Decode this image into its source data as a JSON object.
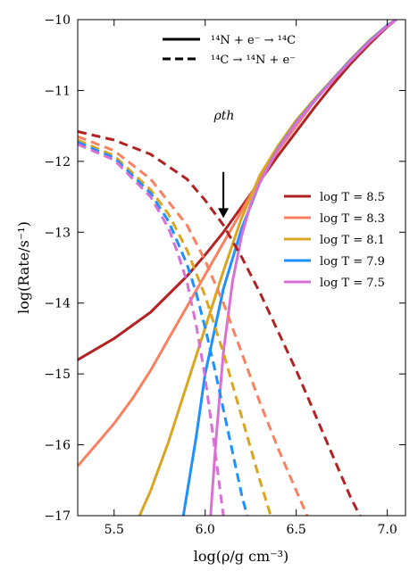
{
  "chart_data": {
    "type": "line",
    "title": "",
    "xlabel": "log(ρ/g cm⁻³)",
    "ylabel": "log(Rate/s⁻¹)",
    "xlim": [
      5.3,
      7.1
    ],
    "ylim": [
      -17,
      -10
    ],
    "xticks": [
      5.5,
      6.0,
      6.5,
      7.0
    ],
    "xtick_labels": [
      "5.5",
      "6.0",
      "6.5",
      "7.0"
    ],
    "yticks": [
      -17,
      -16,
      -15,
      -14,
      -13,
      -12,
      -11,
      -10
    ],
    "ytick_labels": [
      "−17",
      "−16",
      "−15",
      "−14",
      "−13",
      "−12",
      "−11",
      "−10"
    ],
    "grid": false,
    "annotation": {
      "label": "ρth",
      "x": 6.1,
      "y_from": -12.15,
      "y_to": -12.8
    },
    "style_legend": {
      "placement": "top-center",
      "entries": [
        {
          "label": "¹⁴N + e⁻ → ¹⁴C",
          "linestyle": "solid"
        },
        {
          "label": "¹⁴C → ¹⁴N + e⁻",
          "linestyle": "dashed"
        }
      ]
    },
    "temperature_legend": {
      "placement": "center-right",
      "entries": [
        {
          "label": "log T = 8.5",
          "color": "#b22222"
        },
        {
          "label": "log T = 8.3",
          "color": "#fa8060"
        },
        {
          "label": "log T = 8.1",
          "color": "#daa520"
        },
        {
          "label": "log T = 7.9",
          "color": "#1e90ff"
        },
        {
          "label": "log T = 7.5",
          "color": "#da70d6"
        }
      ]
    },
    "series": [
      {
        "linestyle": "solid",
        "color": "#b22222",
        "x": [
          5.3,
          5.5,
          5.7,
          5.9,
          6.0,
          6.1,
          6.2,
          6.3,
          6.4,
          6.5,
          6.6,
          6.7,
          6.8,
          6.9,
          7.0,
          7.05
        ],
        "y": [
          -14.8,
          -14.5,
          -14.13,
          -13.62,
          -13.32,
          -13.0,
          -12.64,
          -12.28,
          -11.92,
          -11.58,
          -11.24,
          -10.92,
          -10.62,
          -10.35,
          -10.1,
          -10.0
        ]
      },
      {
        "linestyle": "solid",
        "color": "#fa8060",
        "x": [
          5.3,
          5.4,
          5.5,
          5.6,
          5.7,
          5.8,
          5.9,
          6.0,
          6.1,
          6.2,
          6.3,
          6.4,
          6.5,
          6.6,
          6.7,
          6.8,
          6.9,
          7.0,
          7.05
        ],
        "y": [
          -16.3,
          -16.0,
          -15.7,
          -15.35,
          -14.95,
          -14.5,
          -14.05,
          -13.6,
          -13.15,
          -12.7,
          -12.25,
          -11.85,
          -11.5,
          -11.15,
          -10.85,
          -10.56,
          -10.3,
          -10.08,
          -10.0
        ]
      },
      {
        "linestyle": "solid",
        "color": "#daa520",
        "x": [
          5.64,
          5.7,
          5.8,
          5.9,
          6.0,
          6.1,
          6.2,
          6.3,
          6.4,
          6.5,
          6.6,
          6.7,
          6.8,
          6.9,
          7.0,
          7.05
        ],
        "y": [
          -17.0,
          -16.65,
          -15.95,
          -15.15,
          -14.35,
          -13.55,
          -12.8,
          -12.2,
          -11.78,
          -11.42,
          -11.12,
          -10.84,
          -10.56,
          -10.3,
          -10.08,
          -10.0
        ]
      },
      {
        "linestyle": "solid",
        "color": "#1e90ff",
        "x": [
          5.88,
          5.95,
          6.0,
          6.1,
          6.2,
          6.3,
          6.4,
          6.5,
          6.6,
          6.7,
          6.8,
          6.9,
          7.0,
          7.05
        ],
        "y": [
          -17.0,
          -15.9,
          -15.0,
          -13.8,
          -12.95,
          -12.3,
          -11.82,
          -11.45,
          -11.14,
          -10.85,
          -10.57,
          -10.31,
          -10.08,
          -10.0
        ]
      },
      {
        "linestyle": "solid",
        "color": "#da70d6",
        "x": [
          6.03,
          6.06,
          6.1,
          6.15,
          6.2,
          6.25,
          6.3,
          6.4,
          6.5,
          6.6,
          6.7,
          6.8,
          6.9,
          7.0,
          7.05
        ],
        "y": [
          -17.0,
          -15.9,
          -14.7,
          -13.7,
          -13.05,
          -12.6,
          -12.3,
          -11.83,
          -11.46,
          -11.15,
          -10.86,
          -10.58,
          -10.32,
          -10.09,
          -10.0
        ]
      },
      {
        "linestyle": "dashed",
        "color": "#b22222",
        "x": [
          5.3,
          5.5,
          5.7,
          5.9,
          6.0,
          6.1,
          6.2,
          6.3,
          6.4,
          6.5,
          6.6,
          6.7,
          6.8,
          6.85
        ],
        "y": [
          -11.58,
          -11.7,
          -11.9,
          -12.25,
          -12.55,
          -12.9,
          -13.35,
          -13.85,
          -14.4,
          -14.95,
          -15.55,
          -16.15,
          -16.75,
          -17.0
        ]
      },
      {
        "linestyle": "dashed",
        "color": "#fa8060",
        "x": [
          5.3,
          5.5,
          5.7,
          5.9,
          6.0,
          6.1,
          6.2,
          6.3,
          6.4,
          6.5,
          6.56
        ],
        "y": [
          -11.65,
          -11.85,
          -12.25,
          -12.9,
          -13.4,
          -14.0,
          -14.7,
          -15.4,
          -16.05,
          -16.65,
          -17.0
        ]
      },
      {
        "linestyle": "dashed",
        "color": "#daa520",
        "x": [
          5.3,
          5.5,
          5.7,
          5.8,
          5.9,
          6.0,
          6.1,
          6.2,
          6.3,
          6.36
        ],
        "y": [
          -11.7,
          -11.92,
          -12.4,
          -12.75,
          -13.25,
          -13.9,
          -14.7,
          -15.6,
          -16.5,
          -17.0
        ]
      },
      {
        "linestyle": "dashed",
        "color": "#1e90ff",
        "x": [
          5.3,
          5.5,
          5.7,
          5.8,
          5.9,
          5.95,
          6.0,
          6.05,
          6.1,
          6.15,
          6.2,
          6.23
        ],
        "y": [
          -11.73,
          -11.95,
          -12.45,
          -12.85,
          -13.45,
          -13.85,
          -14.35,
          -14.9,
          -15.5,
          -16.1,
          -16.7,
          -17.0
        ]
      },
      {
        "linestyle": "dashed",
        "color": "#da70d6",
        "x": [
          5.3,
          5.5,
          5.7,
          5.8,
          5.85,
          5.9,
          5.95,
          6.0,
          6.05,
          6.08,
          6.1
        ],
        "y": [
          -11.76,
          -11.98,
          -12.5,
          -12.95,
          -13.3,
          -13.7,
          -14.3,
          -15.05,
          -16.0,
          -16.6,
          -17.0
        ]
      }
    ]
  }
}
